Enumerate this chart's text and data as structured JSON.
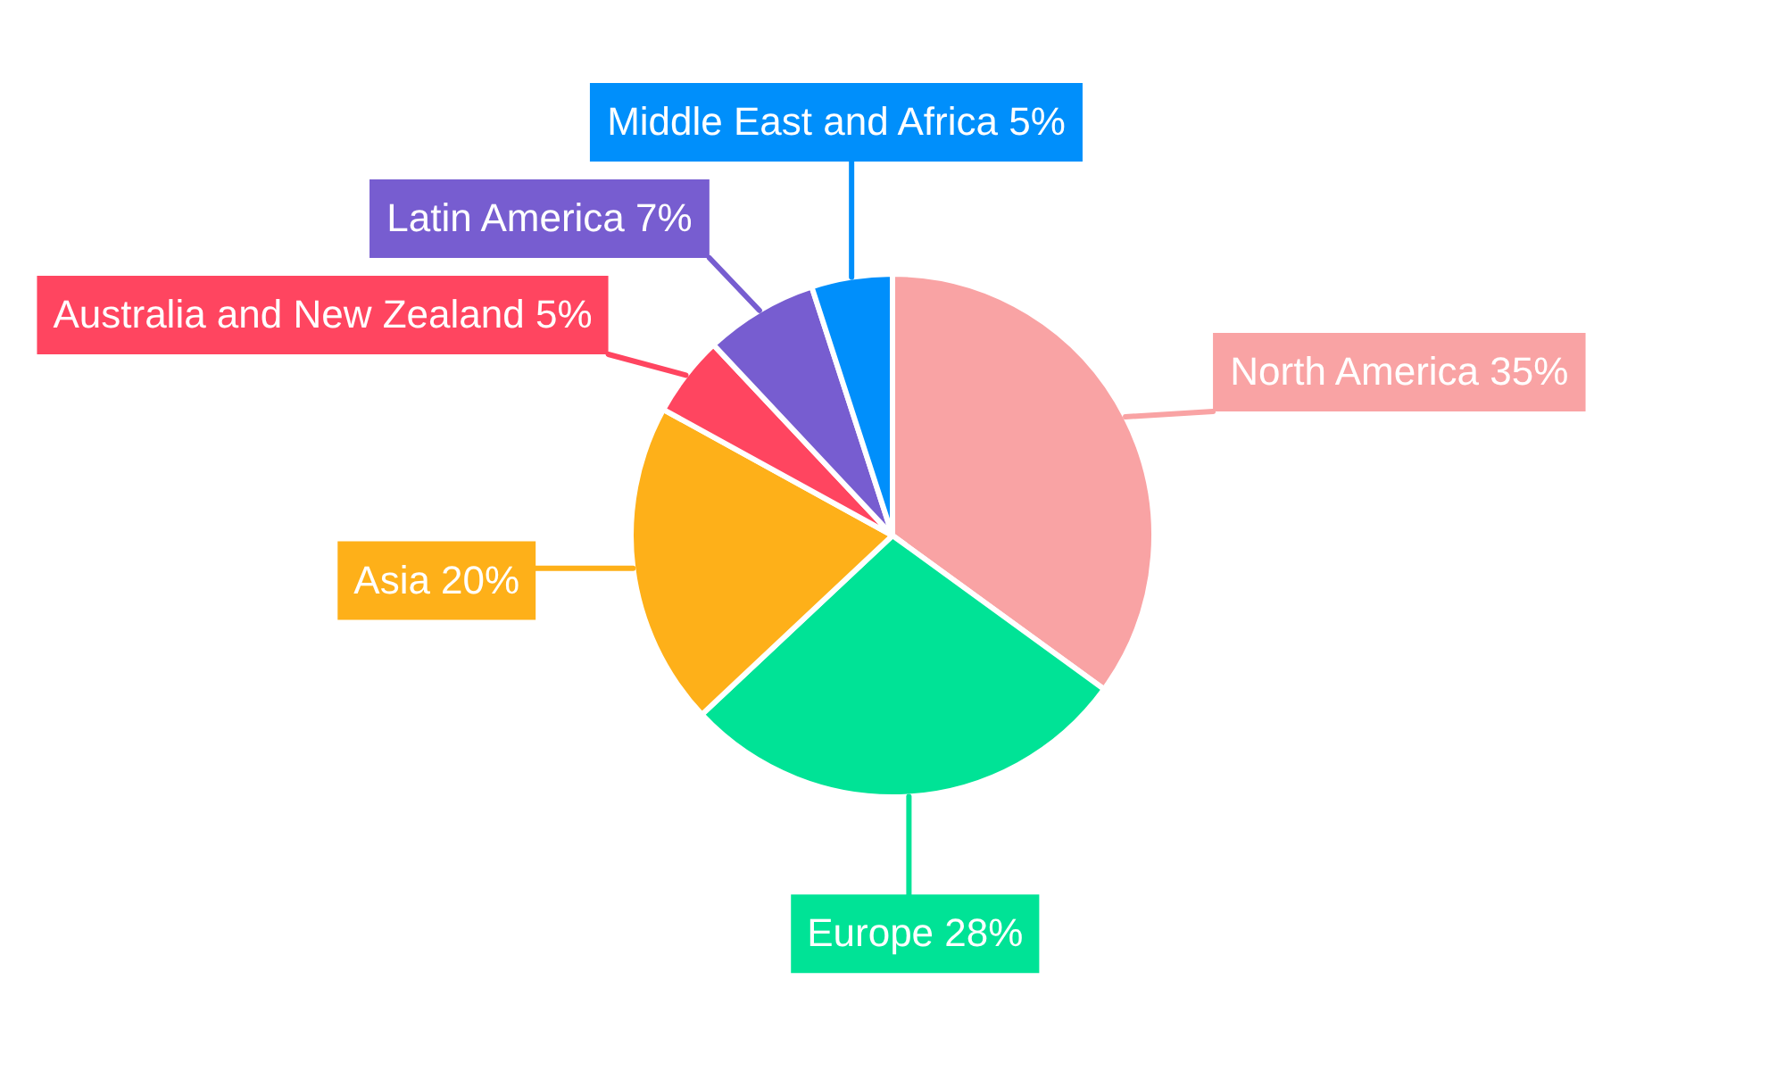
{
  "chart_data": {
    "type": "pie",
    "categories": [
      "North America",
      "Europe",
      "Asia",
      "Australia and New Zealand",
      "Latin America",
      "Middle East and Africa"
    ],
    "values": [
      35,
      28,
      20,
      5,
      7,
      5
    ],
    "colors": [
      "#f9a3a4",
      "#00e396",
      "#feb019",
      "#ff4560",
      "#775dd0",
      "#008ffb"
    ],
    "value_labels": [
      "35%",
      "28%",
      "20%",
      "5%",
      "7%",
      "5%"
    ],
    "legend": false
  }
}
